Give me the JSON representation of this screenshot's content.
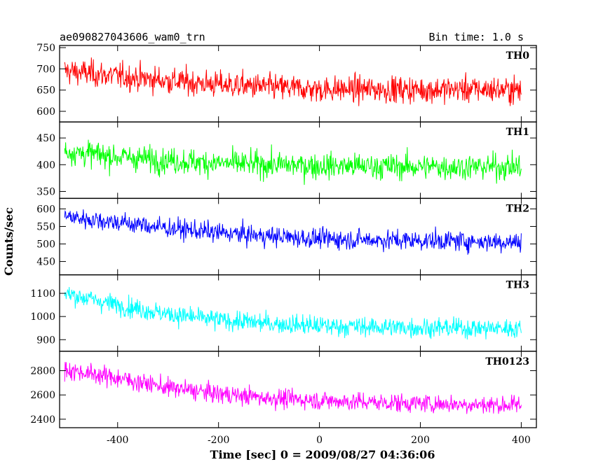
{
  "header": {
    "title": "ae090827043606_wam0_trn",
    "bin_time": "Bin time: 1.0 s"
  },
  "chart_data": {
    "type": "line",
    "title": "ae090827043606_wam0_trn",
    "xlabel": "Time [sec] 0 = 2009/08/27 04:36:06",
    "ylabel": "Counts/sec",
    "xlim": [
      -515,
      430
    ],
    "x_ticks": [
      -400,
      -200,
      0,
      200,
      400
    ],
    "x_range": [
      -505,
      400
    ],
    "bin_time_s": 1.0,
    "grid": false,
    "series": [
      {
        "name": "TH0",
        "color": "#ff0000",
        "ylim": [
          575,
          755
        ],
        "y_ticks": [
          600,
          650,
          700,
          750
        ],
        "shape": [
          [
            -505,
            695
          ],
          [
            -400,
            683
          ],
          [
            -300,
            672
          ],
          [
            -200,
            663
          ],
          [
            -100,
            657
          ],
          [
            0,
            652
          ],
          [
            100,
            652
          ],
          [
            200,
            651
          ],
          [
            300,
            652
          ],
          [
            400,
            650
          ]
        ],
        "noise": 22
      },
      {
        "name": "TH1",
        "color": "#00ff00",
        "ylim": [
          337,
          480
        ],
        "y_ticks": [
          350,
          400,
          450
        ],
        "shape": [
          [
            -505,
            425
          ],
          [
            -400,
            415
          ],
          [
            -300,
            408
          ],
          [
            -200,
            403
          ],
          [
            -100,
            400
          ],
          [
            0,
            398
          ],
          [
            100,
            397
          ],
          [
            200,
            396
          ],
          [
            300,
            396
          ],
          [
            400,
            396
          ]
        ],
        "noise": 17
      },
      {
        "name": "TH2",
        "color": "#0000ff",
        "ylim": [
          412,
          630
        ],
        "y_ticks": [
          450,
          500,
          550,
          600
        ],
        "shape": [
          [
            -505,
            578
          ],
          [
            -400,
            562
          ],
          [
            -300,
            545
          ],
          [
            -200,
            532
          ],
          [
            -100,
            522
          ],
          [
            0,
            515
          ],
          [
            100,
            512
          ],
          [
            200,
            510
          ],
          [
            300,
            508
          ],
          [
            400,
            505
          ]
        ],
        "noise": 20
      },
      {
        "name": "TH3",
        "color": "#00ffff",
        "ylim": [
          850,
          1180
        ],
        "y_ticks": [
          900,
          1000,
          1100
        ],
        "shape": [
          [
            -505,
            1100
          ],
          [
            -400,
            1050
          ],
          [
            -300,
            1010
          ],
          [
            -200,
            985
          ],
          [
            -100,
            970
          ],
          [
            0,
            960
          ],
          [
            100,
            955
          ],
          [
            200,
            952
          ],
          [
            300,
            950
          ],
          [
            400,
            948
          ]
        ],
        "noise": 30
      },
      {
        "name": "TH0123",
        "color": "#ff00ff",
        "ylim": [
          2330,
          2960
        ],
        "y_ticks": [
          2400,
          2600,
          2800
        ],
        "shape": [
          [
            -505,
            2810
          ],
          [
            -400,
            2740
          ],
          [
            -300,
            2660
          ],
          [
            -200,
            2610
          ],
          [
            -100,
            2575
          ],
          [
            0,
            2555
          ],
          [
            100,
            2540
          ],
          [
            200,
            2530
          ],
          [
            300,
            2522
          ],
          [
            400,
            2515
          ]
        ],
        "noise": 55
      }
    ]
  }
}
